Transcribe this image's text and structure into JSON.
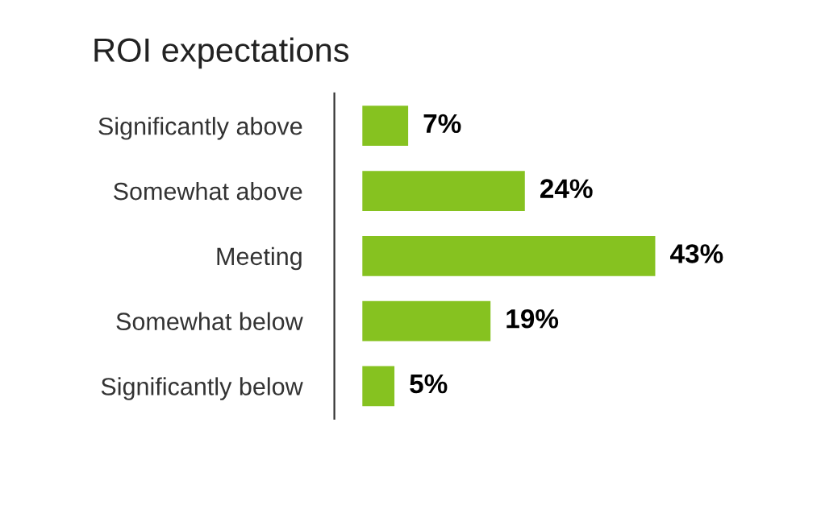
{
  "chart_data": {
    "type": "bar",
    "orientation": "horizontal",
    "title": "ROI expectations",
    "categories": [
      "Significantly above",
      "Somewhat above",
      "Meeting",
      "Somewhat below",
      "Significantly below"
    ],
    "values": [
      7,
      24,
      43,
      19,
      5
    ],
    "color": "#86c220",
    "data_labels": true,
    "value_labels": [
      "7%",
      "24%",
      "43%",
      "19%",
      "5%"
    ],
    "grid": false,
    "legend": false,
    "tick_labels": "y"
  }
}
